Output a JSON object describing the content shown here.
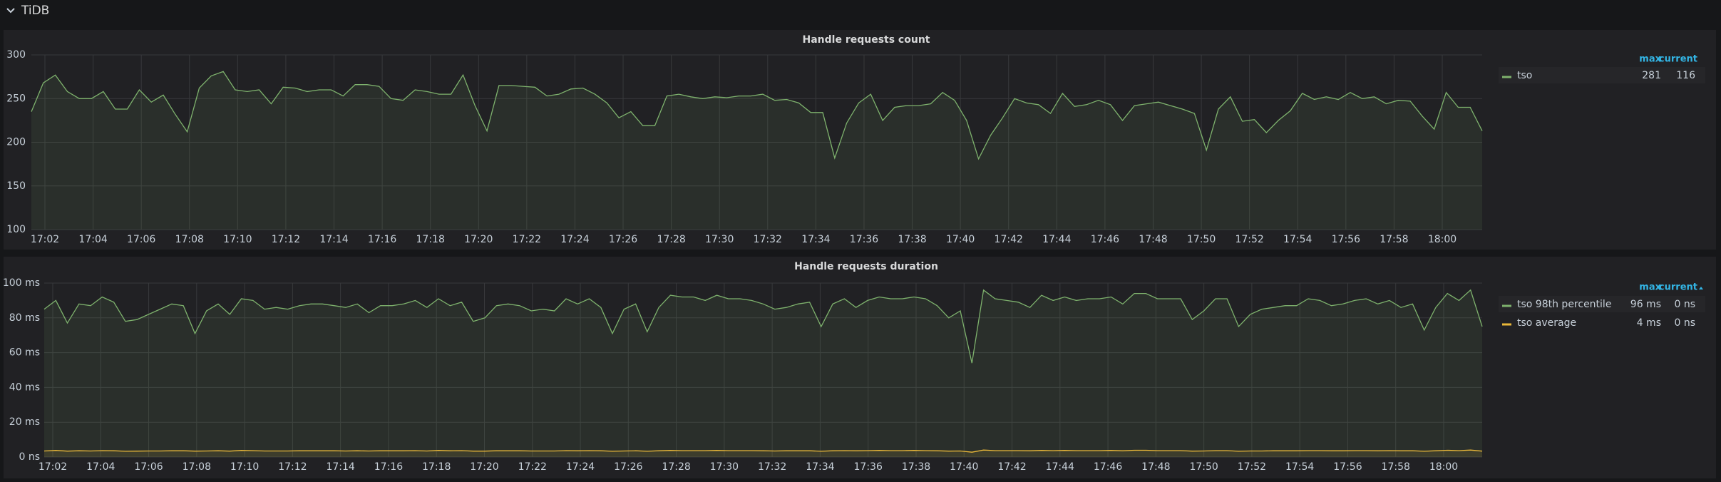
{
  "row": {
    "title": "TiDB"
  },
  "chart_data": [
    {
      "type": "line",
      "title": "Handle requests count",
      "xticks": [
        "17:02",
        "17:04",
        "17:06",
        "17:08",
        "17:10",
        "17:12",
        "17:14",
        "17:16",
        "17:18",
        "17:20",
        "17:22",
        "17:24",
        "17:26",
        "17:28",
        "17:30",
        "17:32",
        "17:34",
        "17:36",
        "17:38",
        "17:40",
        "17:42",
        "17:44",
        "17:46",
        "17:48",
        "17:50",
        "17:52",
        "17:54",
        "17:56",
        "17:58",
        "18:00"
      ],
      "ylim": [
        100,
        300
      ],
      "yticks": [
        100,
        150,
        200,
        250,
        300
      ],
      "grid": true,
      "fill": true,
      "legend": {
        "columns": [
          "max",
          "current"
        ]
      },
      "series": [
        {
          "name": "tso",
          "color": "#7eb26d",
          "stats": [
            281,
            116
          ],
          "values": [
            235,
            268,
            277,
            258,
            250,
            250,
            258,
            238,
            238,
            260,
            246,
            254,
            232,
            212,
            262,
            276,
            281,
            260,
            258,
            260,
            244,
            263,
            262,
            258,
            260,
            260,
            253,
            266,
            266,
            264,
            250,
            248,
            260,
            258,
            255,
            255,
            277,
            242,
            213,
            265,
            265,
            264,
            263,
            253,
            255,
            261,
            262,
            255,
            245,
            228,
            235,
            219,
            219,
            253,
            255,
            252,
            250,
            252,
            251,
            253,
            253,
            255,
            248,
            249,
            245,
            234,
            234,
            182,
            222,
            245,
            255,
            225,
            240,
            242,
            242,
            244,
            257,
            248,
            225,
            181,
            208,
            228,
            250,
            245,
            243,
            233,
            256,
            241,
            243,
            248,
            243,
            225,
            242,
            244,
            246,
            242,
            238,
            233,
            191,
            238,
            252,
            224,
            226,
            211,
            225,
            236,
            256,
            249,
            252,
            249,
            257,
            250,
            252,
            244,
            248,
            247,
            230,
            215,
            257,
            240,
            240,
            213
          ]
        }
      ]
    },
    {
      "type": "line",
      "title": "Handle requests duration",
      "xticks": [
        "17:02",
        "17:04",
        "17:06",
        "17:08",
        "17:10",
        "17:12",
        "17:14",
        "17:16",
        "17:18",
        "17:20",
        "17:22",
        "17:24",
        "17:26",
        "17:28",
        "17:30",
        "17:32",
        "17:34",
        "17:36",
        "17:38",
        "17:40",
        "17:42",
        "17:44",
        "17:46",
        "17:48",
        "17:50",
        "17:52",
        "17:54",
        "17:56",
        "17:58",
        "18:00"
      ],
      "ylim": [
        0,
        100
      ],
      "yticks": [
        {
          "value": 0,
          "label": "0 ns"
        },
        {
          "value": 20,
          "label": "20 ms"
        },
        {
          "value": 40,
          "label": "40 ms"
        },
        {
          "value": 60,
          "label": "60 ms"
        },
        {
          "value": 80,
          "label": "80 ms"
        },
        {
          "value": 100,
          "label": "100 ms"
        }
      ],
      "grid": true,
      "fill": true,
      "legend": {
        "columns": [
          "max",
          "current"
        ]
      },
      "series": [
        {
          "name": "tso 98th percentile",
          "color": "#7eb26d",
          "stats": [
            {
              "value": 96,
              "label": "96 ms"
            },
            {
              "value": 0,
              "label": "0 ns"
            }
          ],
          "values": [
            85,
            90,
            77,
            88,
            87,
            92,
            89,
            78,
            79,
            82,
            85,
            88,
            87,
            71,
            84,
            88,
            82,
            91,
            90,
            85,
            86,
            85,
            87,
            88,
            88,
            87,
            86,
            88,
            83,
            87,
            87,
            88,
            90,
            86,
            91,
            87,
            89,
            78,
            80,
            87,
            88,
            87,
            84,
            85,
            84,
            91,
            88,
            91,
            86,
            71,
            85,
            88,
            72,
            86,
            93,
            92,
            92,
            90,
            93,
            91,
            91,
            90,
            88,
            85,
            86,
            88,
            89,
            75,
            88,
            91,
            86,
            90,
            92,
            91,
            91,
            92,
            91,
            87,
            80,
            84,
            54,
            96,
            91,
            90,
            89,
            86,
            93,
            90,
            92,
            90,
            91,
            91,
            92,
            88,
            94,
            94,
            91,
            91,
            91,
            79,
            84,
            91,
            91,
            75,
            82,
            85,
            86,
            87,
            87,
            91,
            90,
            87,
            88,
            90,
            91,
            88,
            90,
            86,
            88,
            73,
            86,
            94,
            90,
            96,
            75
          ]
        },
        {
          "name": "tso average",
          "color": "#eab839",
          "stats": [
            {
              "value": 4,
              "label": "4 ms"
            },
            {
              "value": 0,
              "label": "0 ns"
            }
          ],
          "values": [
            3.5,
            3.8,
            3.4,
            3.6,
            3.5,
            3.7,
            3.6,
            3.3,
            3.4,
            3.5,
            3.5,
            3.6,
            3.6,
            3.4,
            3.5,
            3.6,
            3.4,
            3.8,
            3.7,
            3.5,
            3.5,
            3.5,
            3.6,
            3.6,
            3.6,
            3.6,
            3.5,
            3.6,
            3.5,
            3.6,
            3.6,
            3.6,
            3.7,
            3.5,
            3.8,
            3.6,
            3.7,
            3.4,
            3.4,
            3.6,
            3.6,
            3.6,
            3.5,
            3.5,
            3.5,
            3.7,
            3.6,
            3.7,
            3.6,
            3.3,
            3.5,
            3.6,
            3.3,
            3.6,
            3.8,
            3.7,
            3.7,
            3.7,
            3.8,
            3.7,
            3.7,
            3.7,
            3.6,
            3.5,
            3.6,
            3.6,
            3.6,
            3.3,
            3.6,
            3.7,
            3.6,
            3.7,
            3.8,
            3.7,
            3.7,
            3.8,
            3.7,
            3.6,
            3.4,
            3.5,
            2.8,
            4,
            3.7,
            3.7,
            3.7,
            3.6,
            3.8,
            3.7,
            3.8,
            3.7,
            3.7,
            3.7,
            3.8,
            3.6,
            3.9,
            3.9,
            3.7,
            3.7,
            3.7,
            3.4,
            3.5,
            3.7,
            3.7,
            3.3,
            3.5,
            3.5,
            3.6,
            3.6,
            3.6,
            3.7,
            3.7,
            3.6,
            3.6,
            3.7,
            3.7,
            3.6,
            3.7,
            3.6,
            3.6,
            3.3,
            3.6,
            3.9,
            3.7,
            4,
            3.4
          ]
        }
      ]
    }
  ]
}
